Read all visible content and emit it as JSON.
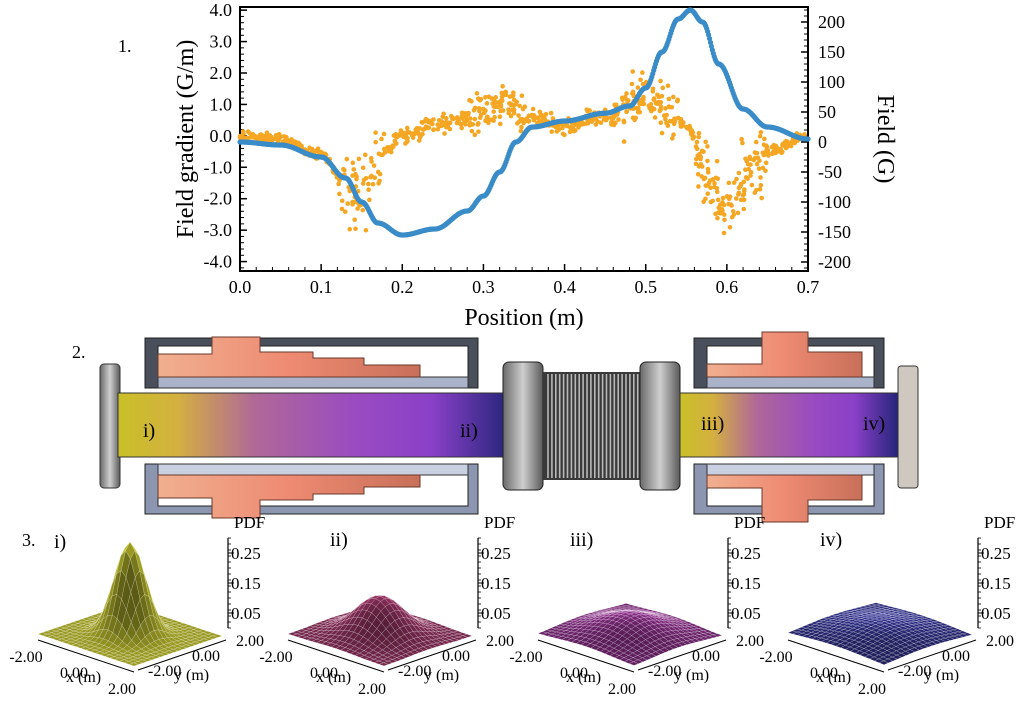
{
  "panel_labels": {
    "p1": "1.",
    "p2": "2.",
    "p3": "3."
  },
  "colors": {
    "gradient": "#f5a623",
    "field": "#3a8cc8",
    "pdf_i": "#b5b52a",
    "pdf_ii": "#8a2f5a",
    "pdf_iii": "#7a2878",
    "pdf_iv": "#2a2a78"
  },
  "chart_data": {
    "type": "scatter",
    "xlabel": "Position (m)",
    "ylabel_left": "Field gradient (G/m)",
    "ylabel_right": "Field (G)",
    "xlim": [
      0,
      0.7
    ],
    "ylim_left": [
      -4.3,
      4.1
    ],
    "ylim_right": [
      -215,
      225
    ],
    "x_ticks": [
      "0.0",
      "0.1",
      "0.2",
      "0.3",
      "0.4",
      "0.5",
      "0.6",
      "0.7"
    ],
    "y_left_ticks": [
      "4.0",
      "3.0",
      "2.0",
      "1.0",
      "0.0",
      "-1.0",
      "-2.0",
      "-3.0",
      "-4.0"
    ],
    "y_right_ticks": [
      "200",
      "150",
      "100",
      "50",
      "0",
      "-50",
      "-100",
      "-150",
      "-200"
    ],
    "series": [
      {
        "name": "Field (G)",
        "x": [
          0.0,
          0.05,
          0.1,
          0.13,
          0.15,
          0.17,
          0.2,
          0.24,
          0.28,
          0.3,
          0.32,
          0.34,
          0.36,
          0.4,
          0.45,
          0.48,
          0.5,
          0.52,
          0.54,
          0.555,
          0.57,
          0.59,
          0.62,
          0.65,
          0.7
        ],
        "y": [
          0,
          -5,
          -25,
          -60,
          -100,
          -135,
          -155,
          -145,
          -115,
          -90,
          -50,
          0,
          25,
          35,
          48,
          60,
          90,
          150,
          205,
          220,
          200,
          130,
          55,
          25,
          5
        ]
      },
      {
        "name": "Field gradient (G/m)",
        "x": [
          0.0,
          0.05,
          0.1,
          0.13,
          0.15,
          0.18,
          0.2,
          0.25,
          0.3,
          0.33,
          0.36,
          0.4,
          0.45,
          0.5,
          0.52,
          0.55,
          0.58,
          0.6,
          0.62,
          0.65,
          0.7
        ],
        "y": [
          0.0,
          -0.1,
          -0.6,
          -1.5,
          -2.0,
          -0.5,
          0.0,
          0.4,
          0.7,
          1.1,
          0.6,
          0.3,
          0.6,
          1.2,
          1.0,
          0.3,
          -1.5,
          -2.5,
          -1.5,
          -0.5,
          0.0
        ]
      }
    ]
  },
  "solenoid": {
    "labels": [
      "i)",
      "ii)",
      "iii)",
      "iv)"
    ]
  },
  "pdf_plots": {
    "title_labels": [
      "i)",
      "ii)",
      "iii)",
      "iv)"
    ],
    "zlabel": "PDF",
    "z_ticks": [
      "0.25",
      "0.15",
      "0.05"
    ],
    "x_ticks": [
      "-2.00",
      "0.00",
      "2.00"
    ],
    "y_ticks": [
      "2.00",
      "0.00",
      "-2.00"
    ],
    "xlabel": "x (m)",
    "ylabel": "y (m)",
    "peak_pdf": [
      0.31,
      0.13,
      0.07,
      0.04
    ]
  }
}
